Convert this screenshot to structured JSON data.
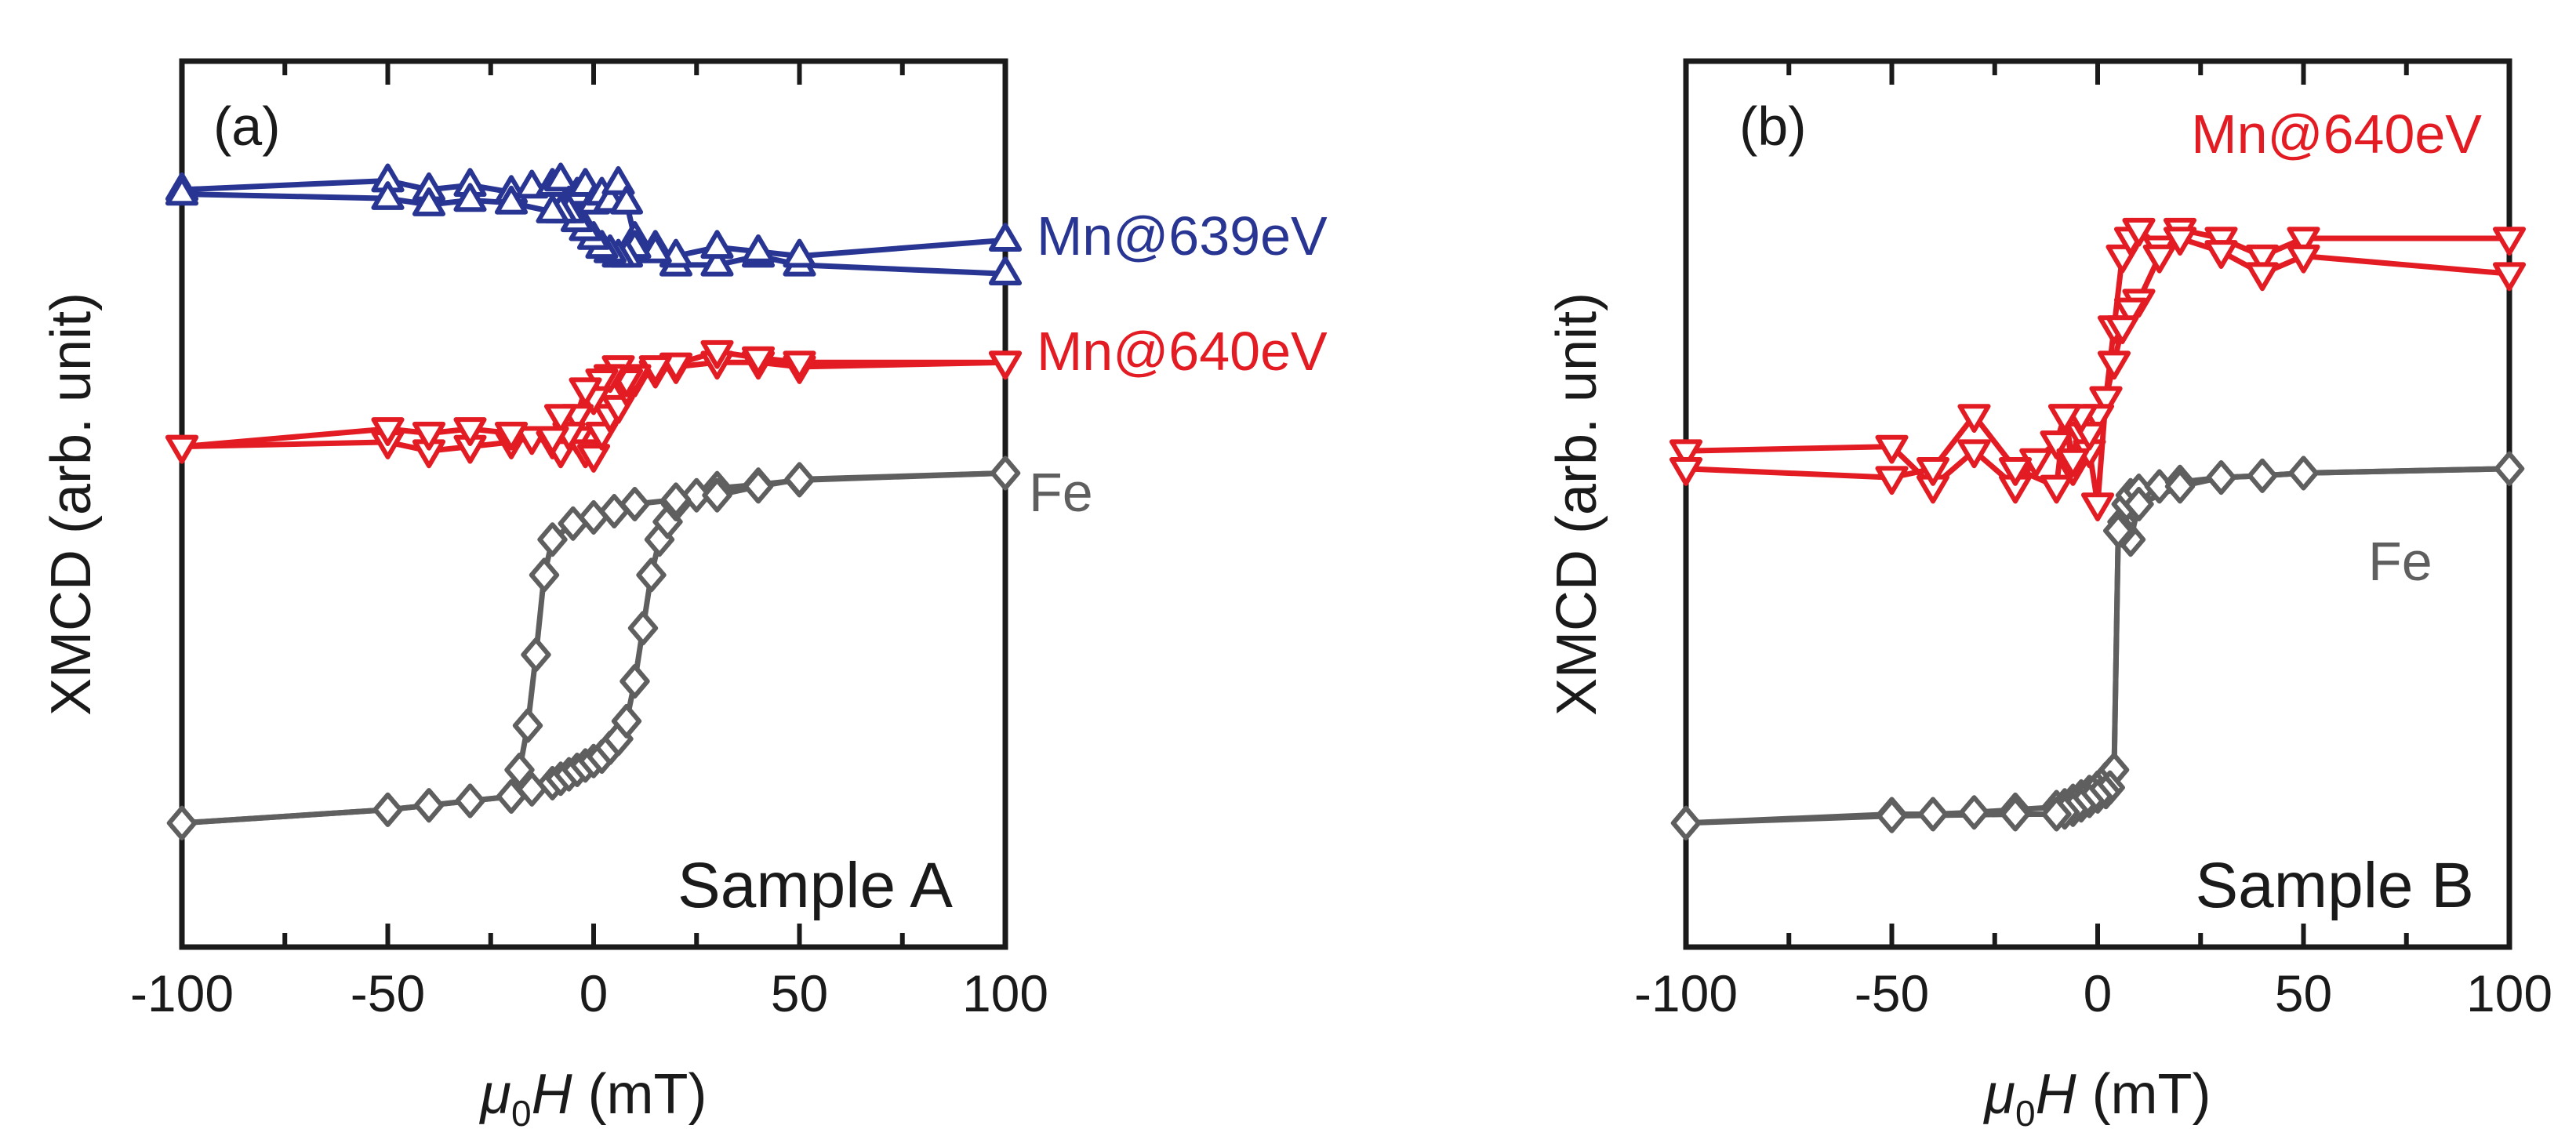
{
  "chart_data": [
    {
      "type": "line",
      "panel_label": "(a)",
      "sample_label": "Sample A",
      "xlabel": {
        "mu": "μ",
        "sub": "0",
        "H": "H",
        "unit": " (mT)"
      },
      "ylabel": "XMCD (arb. unit)",
      "xlim": [
        -100,
        100
      ],
      "ylim": [
        0,
        1
      ],
      "xticks": [
        -100,
        -50,
        0,
        50,
        100
      ],
      "xtick_labels": [
        "-100",
        "-50",
        "0",
        "50",
        "100"
      ],
      "series": [
        {
          "name": "Mn@639eV",
          "color": "#283593",
          "marker": "triangle-up",
          "branches": [
            {
              "x": [
                -100,
                -50,
                -40,
                -30,
                -20,
                -15,
                -10,
                -8,
                -6,
                -4,
                -2,
                0,
                2,
                4,
                6,
                8,
                10,
                15,
                20,
                30,
                40,
                50,
                100
              ],
              "y": [
                0.855,
                0.865,
                0.855,
                0.86,
                0.852,
                0.858,
                0.86,
                0.866,
                0.84,
                0.85,
                0.86,
                0.84,
                0.85,
                0.842,
                0.862,
                0.84,
                0.8,
                0.79,
                0.77,
                0.77,
                0.78,
                0.77,
                0.76
              ]
            },
            {
              "x": [
                100,
                50,
                40,
                30,
                20,
                15,
                10,
                8,
                6,
                4,
                2,
                0,
                -2,
                -4,
                -6,
                -8,
                -10,
                -20,
                -30,
                -40,
                -50,
                -100
              ],
              "y": [
                0.798,
                0.78,
                0.785,
                0.79,
                0.78,
                0.785,
                0.79,
                0.78,
                0.78,
                0.785,
                0.79,
                0.8,
                0.81,
                0.82,
                0.83,
                0.83,
                0.83,
                0.84,
                0.843,
                0.838,
                0.845,
                0.85
              ]
            }
          ]
        },
        {
          "name": "Mn@640eV",
          "color": "#e31b23",
          "marker": "triangle-down",
          "branches": [
            {
              "x": [
                -100,
                -50,
                -40,
                -30,
                -20,
                -15,
                -10,
                -8,
                -6,
                -4,
                -2,
                0,
                2,
                4,
                6,
                8,
                10,
                15,
                20,
                30,
                40,
                50,
                100
              ],
              "y": [
                0.565,
                0.57,
                0.56,
                0.565,
                0.57,
                0.575,
                0.57,
                0.56,
                0.58,
                0.575,
                0.56,
                0.555,
                0.58,
                0.6,
                0.61,
                0.63,
                0.64,
                0.65,
                0.655,
                0.66,
                0.66,
                0.655,
                0.66
              ]
            },
            {
              "x": [
                100,
                50,
                40,
                30,
                20,
                15,
                10,
                8,
                6,
                4,
                2,
                0,
                -2,
                -4,
                -6,
                -8,
                -10,
                -20,
                -30,
                -40,
                -50,
                -100
              ],
              "y": [
                0.66,
                0.66,
                0.665,
                0.672,
                0.658,
                0.655,
                0.645,
                0.64,
                0.655,
                0.645,
                0.64,
                0.62,
                0.63,
                0.6,
                0.58,
                0.6,
                0.575,
                0.58,
                0.585,
                0.58,
                0.585,
                0.565
              ]
            }
          ]
        },
        {
          "name": "Fe",
          "color": "#5f5f5f",
          "marker": "diamond",
          "branches": [
            {
              "x": [
                -100,
                -50,
                -40,
                -30,
                -20,
                -15,
                -10,
                -8,
                -6,
                -4,
                -2,
                0,
                2,
                4,
                6,
                8,
                10,
                12,
                14,
                16,
                18,
                20,
                25,
                30,
                40,
                50,
                100
              ],
              "y": [
                0.14,
                0.155,
                0.16,
                0.165,
                0.17,
                0.178,
                0.185,
                0.19,
                0.195,
                0.2,
                0.205,
                0.21,
                0.215,
                0.225,
                0.235,
                0.255,
                0.3,
                0.36,
                0.42,
                0.46,
                0.48,
                0.5,
                0.51,
                0.518,
                0.522,
                0.527,
                0.535
              ]
            },
            {
              "x": [
                100,
                50,
                40,
                30,
                20,
                10,
                5,
                0,
                -5,
                -10,
                -12,
                -14,
                -16,
                -18,
                -20,
                -30,
                -40,
                -50,
                -100
              ],
              "y": [
                0.535,
                0.528,
                0.52,
                0.51,
                0.505,
                0.5,
                0.492,
                0.485,
                0.478,
                0.46,
                0.42,
                0.33,
                0.25,
                0.2,
                0.17,
                0.165,
                0.16,
                0.155,
                0.14
              ]
            }
          ]
        }
      ]
    },
    {
      "type": "line",
      "panel_label": "(b)",
      "sample_label": "Sample B",
      "xlabel": {
        "mu": "μ",
        "sub": "0",
        "H": "H",
        "unit": " (mT)"
      },
      "ylabel": "XMCD (arb. unit)",
      "xlim": [
        -100,
        100
      ],
      "ylim": [
        0,
        1
      ],
      "xticks": [
        -100,
        -50,
        0,
        50,
        100
      ],
      "xtick_labels": [
        "-100",
        "-50",
        "0",
        "50",
        "100"
      ],
      "series": [
        {
          "name": "Mn@640eV",
          "color": "#e31b23",
          "marker": "triangle-down",
          "branches": [
            {
              "x": [
                -100,
                -50,
                -40,
                -30,
                -20,
                -15,
                -10,
                -8,
                -6,
                -4,
                -2,
                0,
                2,
                4,
                6,
                8,
                10,
                15,
                20,
                30,
                40,
                50,
                100
              ],
              "y": [
                0.56,
                0.565,
                0.52,
                0.56,
                0.52,
                0.55,
                0.57,
                0.6,
                0.54,
                0.58,
                0.56,
                0.5,
                0.62,
                0.7,
                0.78,
                0.8,
                0.81,
                0.79,
                0.81,
                0.8,
                0.78,
                0.8,
                0.8
              ]
            },
            {
              "x": [
                100,
                50,
                40,
                30,
                20,
                15,
                10,
                8,
                6,
                4,
                2,
                0,
                -2,
                -4,
                -6,
                -8,
                -10,
                -20,
                -30,
                -40,
                -50,
                -100
              ],
              "y": [
                0.76,
                0.78,
                0.76,
                0.785,
                0.8,
                0.78,
                0.73,
                0.72,
                0.7,
                0.66,
                0.62,
                0.6,
                0.58,
                0.6,
                0.55,
                0.6,
                0.52,
                0.54,
                0.6,
                0.54,
                0.53,
                0.54
              ]
            }
          ]
        },
        {
          "name": "Fe",
          "color": "#5f5f5f",
          "marker": "diamond",
          "branches": [
            {
              "x": [
                -100,
                -50,
                -40,
                -30,
                -20,
                -10,
                -8,
                -6,
                -4,
                -2,
                0,
                2,
                3,
                4,
                5,
                6,
                7,
                8,
                10,
                15,
                20,
                30,
                40,
                50,
                100
              ],
              "y": [
                0.14,
                0.15,
                0.15,
                0.152,
                0.155,
                0.158,
                0.16,
                0.165,
                0.17,
                0.175,
                0.18,
                0.19,
                0.195,
                0.2,
                0.47,
                0.48,
                0.5,
                0.51,
                0.515,
                0.52,
                0.525,
                0.53,
                0.532,
                0.535,
                0.54
              ]
            },
            {
              "x": [
                100,
                50,
                40,
                30,
                20,
                10,
                8,
                6,
                5,
                4,
                3,
                2,
                0,
                -2,
                -4,
                -6,
                -8,
                -10,
                -20,
                -50,
                -100
              ],
              "y": [
                0.54,
                0.535,
                0.532,
                0.53,
                0.52,
                0.5,
                0.46,
                0.47,
                0.47,
                0.2,
                0.18,
                0.175,
                0.17,
                0.165,
                0.16,
                0.155,
                0.152,
                0.15,
                0.15,
                0.148,
                0.14
              ]
            }
          ]
        }
      ]
    }
  ]
}
